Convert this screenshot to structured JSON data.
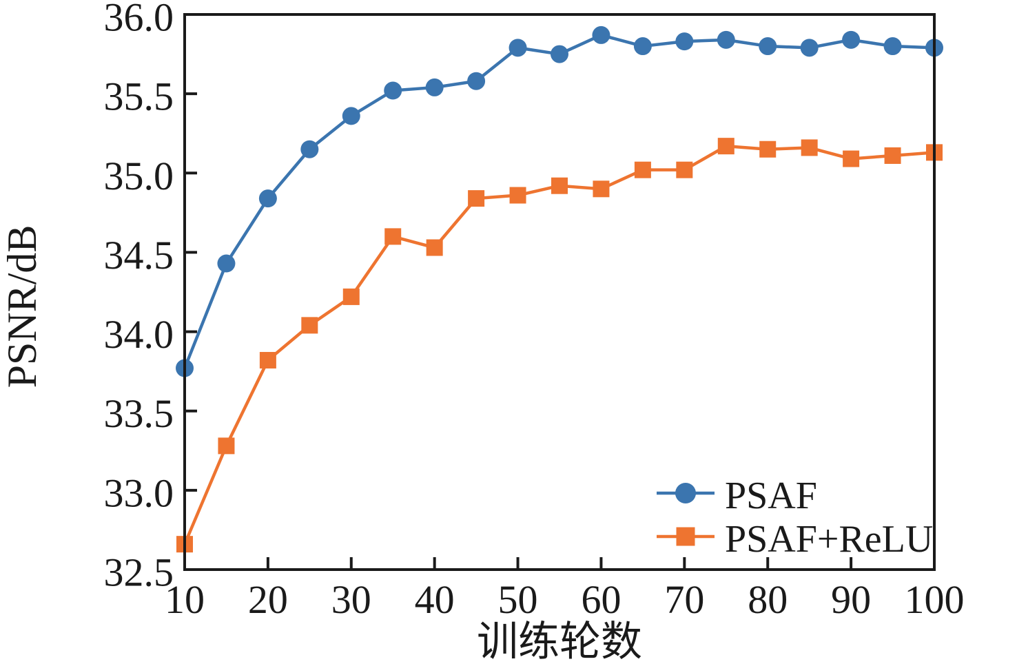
{
  "figure": {
    "background": "#ffffff",
    "axis_color": "#1a1a1a"
  },
  "chart_data": {
    "type": "line",
    "title": "",
    "xlabel": "训练轮数",
    "ylabel": "PSNR/dB",
    "xlim": [
      10,
      100
    ],
    "ylim": [
      32.5,
      36.0
    ],
    "x_ticks": [
      10,
      20,
      30,
      40,
      50,
      60,
      70,
      80,
      90,
      100
    ],
    "y_ticks": [
      32.5,
      33.0,
      33.5,
      34.0,
      34.5,
      35.0,
      35.5,
      36.0
    ],
    "grid": false,
    "tick_direction": "in",
    "legend_position": "lower right",
    "x": [
      10,
      15,
      20,
      25,
      30,
      35,
      40,
      45,
      50,
      55,
      60,
      65,
      70,
      75,
      80,
      85,
      90,
      95,
      100
    ],
    "series": [
      {
        "name": "PSAF",
        "color": "#3B75AF",
        "marker": "circle",
        "values": [
          33.77,
          34.43,
          34.84,
          35.15,
          35.36,
          35.52,
          35.54,
          35.58,
          35.79,
          35.75,
          35.87,
          35.8,
          35.83,
          35.84,
          35.8,
          35.79,
          35.84,
          35.8,
          35.79
        ]
      },
      {
        "name": "PSAF+ReLU",
        "color": "#EE7430",
        "marker": "square",
        "values": [
          32.66,
          33.28,
          33.82,
          34.04,
          34.22,
          34.6,
          34.53,
          34.84,
          34.86,
          34.92,
          34.9,
          35.02,
          35.02,
          35.17,
          35.15,
          35.16,
          35.09,
          35.11,
          35.13
        ]
      }
    ]
  }
}
